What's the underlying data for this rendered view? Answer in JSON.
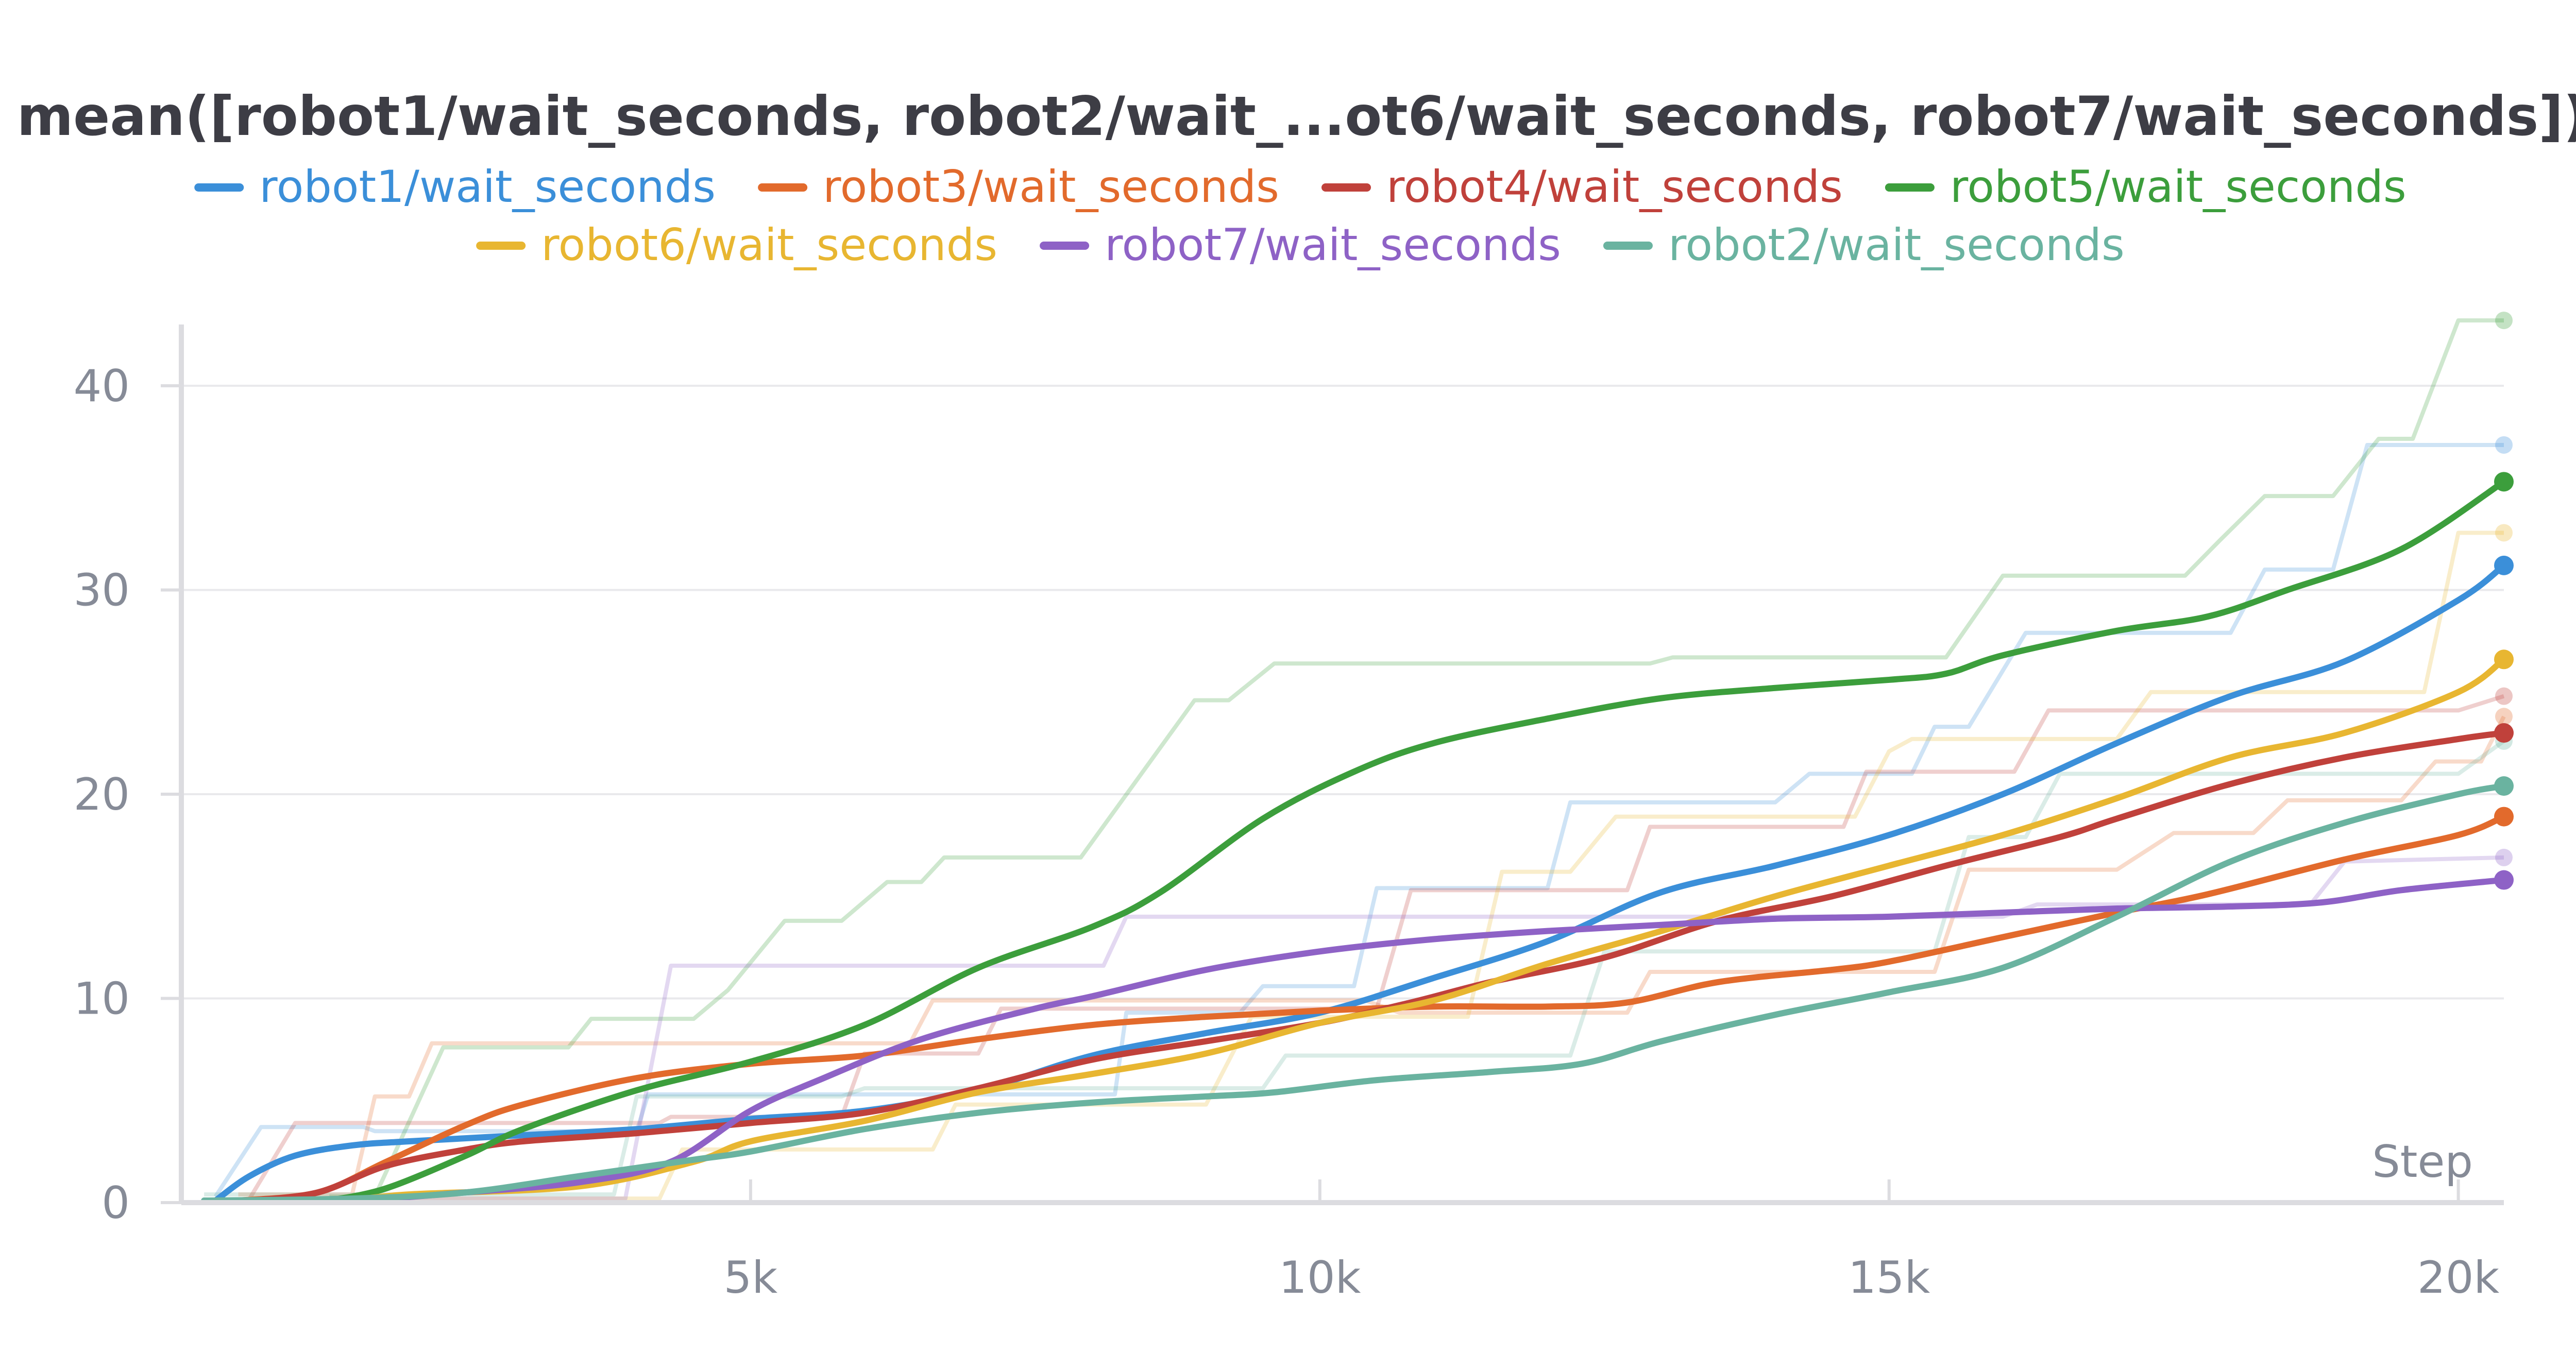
{
  "chart_data": {
    "type": "line",
    "title": "mean([robot1/wait_seconds, robot2/wait_...ot6/wait_seconds, robot7/wait_seconds])",
    "xlabel": "Step",
    "ylabel": "",
    "xlim": [
      0,
      20400
    ],
    "ylim": [
      0,
      43
    ],
    "x_ticks": [
      5000,
      10000,
      15000,
      20000
    ],
    "x_tick_labels": [
      "5k",
      "10k",
      "15k",
      "20k"
    ],
    "y_ticks": [
      0,
      10,
      20,
      30,
      40
    ],
    "y_tick_labels": [
      "0",
      "10",
      "20",
      "30",
      "40"
    ],
    "grid": true,
    "legend_position": "top-center",
    "series": [
      {
        "name": "robot1/wait_seconds",
        "color": "#3b8fd9",
        "smoothed": [
          [
            300,
            0.1
          ],
          [
            600,
            1.3
          ],
          [
            1000,
            2.3
          ],
          [
            1500,
            2.8
          ],
          [
            2000,
            3.0
          ],
          [
            3000,
            3.3
          ],
          [
            4000,
            3.6
          ],
          [
            5000,
            4.1
          ],
          [
            6000,
            4.5
          ],
          [
            7000,
            5.5
          ],
          [
            8000,
            7.2
          ],
          [
            9000,
            8.3
          ],
          [
            10000,
            9.3
          ],
          [
            11000,
            11.0
          ],
          [
            12000,
            12.8
          ],
          [
            13000,
            15.2
          ],
          [
            14000,
            16.5
          ],
          [
            15000,
            18.0
          ],
          [
            16000,
            20.0
          ],
          [
            17000,
            22.5
          ],
          [
            18000,
            24.8
          ],
          [
            19000,
            26.5
          ],
          [
            20000,
            29.5
          ],
          [
            20400,
            31.2
          ]
        ],
        "raw": [
          [
            300,
            0.3
          ],
          [
            700,
            3.7
          ],
          [
            1600,
            3.7
          ],
          [
            1700,
            3.5
          ],
          [
            4000,
            3.5
          ],
          [
            4100,
            5.3
          ],
          [
            8200,
            5.3
          ],
          [
            8300,
            9.3
          ],
          [
            9300,
            9.3
          ],
          [
            9500,
            10.6
          ],
          [
            10300,
            10.6
          ],
          [
            10500,
            15.4
          ],
          [
            11000,
            15.4
          ],
          [
            12000,
            15.4
          ],
          [
            12200,
            19.6
          ],
          [
            14000,
            19.6
          ],
          [
            14300,
            21.0
          ],
          [
            15200,
            21.0
          ],
          [
            15400,
            23.3
          ],
          [
            15700,
            23.3
          ],
          [
            16200,
            27.9
          ],
          [
            18000,
            27.9
          ],
          [
            18300,
            31.0
          ],
          [
            18900,
            31.0
          ],
          [
            19200,
            37.1
          ],
          [
            20400,
            37.1
          ]
        ]
      },
      {
        "name": "robot3/wait_seconds",
        "color": "#e26a2c",
        "smoothed": [
          [
            500,
            0.1
          ],
          [
            1200,
            0.5
          ],
          [
            1800,
            2.0
          ],
          [
            2500,
            3.8
          ],
          [
            3000,
            4.8
          ],
          [
            4000,
            6.1
          ],
          [
            5000,
            6.8
          ],
          [
            6000,
            7.2
          ],
          [
            7000,
            8.0
          ],
          [
            8000,
            8.7
          ],
          [
            9000,
            9.1
          ],
          [
            10000,
            9.4
          ],
          [
            11000,
            9.6
          ],
          [
            12000,
            9.6
          ],
          [
            12700,
            9.8
          ],
          [
            13500,
            10.8
          ],
          [
            14500,
            11.4
          ],
          [
            15000,
            11.8
          ],
          [
            16000,
            13.0
          ],
          [
            17000,
            14.2
          ],
          [
            17800,
            15.1
          ],
          [
            19000,
            16.8
          ],
          [
            20000,
            18.0
          ],
          [
            20400,
            18.9
          ]
        ],
        "raw": [
          [
            500,
            0.4
          ],
          [
            1500,
            0.4
          ],
          [
            1700,
            5.2
          ],
          [
            2000,
            5.2
          ],
          [
            2200,
            7.8
          ],
          [
            6400,
            7.8
          ],
          [
            6600,
            9.9
          ],
          [
            10400,
            9.9
          ],
          [
            10700,
            9.3
          ],
          [
            12700,
            9.3
          ],
          [
            12900,
            11.3
          ],
          [
            15400,
            11.3
          ],
          [
            15700,
            16.3
          ],
          [
            17000,
            16.3
          ],
          [
            17500,
            18.1
          ],
          [
            18200,
            18.1
          ],
          [
            18500,
            19.7
          ],
          [
            19500,
            19.7
          ],
          [
            19800,
            21.6
          ],
          [
            20200,
            21.6
          ],
          [
            20400,
            23.8
          ]
        ]
      },
      {
        "name": "robot4/wait_seconds",
        "color": "#c0413b",
        "smoothed": [
          [
            600,
            0.1
          ],
          [
            1200,
            0.5
          ],
          [
            1800,
            1.8
          ],
          [
            2500,
            2.6
          ],
          [
            3000,
            3.0
          ],
          [
            4000,
            3.4
          ],
          [
            5000,
            3.9
          ],
          [
            6000,
            4.4
          ],
          [
            7000,
            5.6
          ],
          [
            8000,
            7.0
          ],
          [
            9000,
            7.9
          ],
          [
            10000,
            8.8
          ],
          [
            10800,
            9.8
          ],
          [
            11500,
            10.8
          ],
          [
            12500,
            12.0
          ],
          [
            13500,
            13.8
          ],
          [
            14500,
            15.0
          ],
          [
            15500,
            16.5
          ],
          [
            16500,
            17.9
          ],
          [
            17000,
            18.8
          ],
          [
            18000,
            20.5
          ],
          [
            19000,
            21.8
          ],
          [
            20000,
            22.7
          ],
          [
            20400,
            23.0
          ]
        ],
        "raw": [
          [
            600,
            0.2
          ],
          [
            1000,
            3.9
          ],
          [
            4200,
            3.9
          ],
          [
            4300,
            4.2
          ],
          [
            5800,
            4.2
          ],
          [
            6000,
            7.3
          ],
          [
            7000,
            7.3
          ],
          [
            7200,
            9.5
          ],
          [
            10500,
            9.5
          ],
          [
            10800,
            15.3
          ],
          [
            12700,
            15.3
          ],
          [
            12900,
            18.4
          ],
          [
            14600,
            18.4
          ],
          [
            14800,
            21.1
          ],
          [
            16100,
            21.1
          ],
          [
            16400,
            24.1
          ],
          [
            20000,
            24.1
          ],
          [
            20400,
            24.8
          ]
        ]
      },
      {
        "name": "robot5/wait_seconds",
        "color": "#3c9e3c",
        "smoothed": [
          [
            1300,
            0.1
          ],
          [
            1800,
            0.7
          ],
          [
            2500,
            2.3
          ],
          [
            3000,
            3.6
          ],
          [
            4000,
            5.5
          ],
          [
            5000,
            6.9
          ],
          [
            6000,
            8.7
          ],
          [
            7000,
            11.5
          ],
          [
            8000,
            13.5
          ],
          [
            8600,
            15.2
          ],
          [
            9500,
            18.8
          ],
          [
            10300,
            21.1
          ],
          [
            11000,
            22.5
          ],
          [
            12000,
            23.7
          ],
          [
            13000,
            24.7
          ],
          [
            14000,
            25.2
          ],
          [
            15000,
            25.6
          ],
          [
            15500,
            25.9
          ],
          [
            16000,
            26.8
          ],
          [
            17000,
            28.0
          ],
          [
            17800,
            28.7
          ],
          [
            18500,
            30.0
          ],
          [
            19500,
            32.0
          ],
          [
            20400,
            35.3
          ]
        ],
        "raw": [
          [
            1300,
            0.3
          ],
          [
            1700,
            0.3
          ],
          [
            2300,
            7.6
          ],
          [
            3400,
            7.6
          ],
          [
            3600,
            9.0
          ],
          [
            4500,
            9.0
          ],
          [
            4800,
            10.4
          ],
          [
            5300,
            13.8
          ],
          [
            5800,
            13.8
          ],
          [
            6200,
            15.7
          ],
          [
            6500,
            15.7
          ],
          [
            6700,
            16.9
          ],
          [
            7900,
            16.9
          ],
          [
            8900,
            24.6
          ],
          [
            9200,
            24.6
          ],
          [
            9600,
            26.4
          ],
          [
            12900,
            26.4
          ],
          [
            13100,
            26.7
          ],
          [
            15500,
            26.7
          ],
          [
            16000,
            30.7
          ],
          [
            17600,
            30.7
          ],
          [
            17900,
            32.4
          ],
          [
            18300,
            34.6
          ],
          [
            18900,
            34.6
          ],
          [
            19300,
            37.4
          ],
          [
            19600,
            37.4
          ],
          [
            20000,
            43.2
          ],
          [
            20400,
            43.2
          ]
        ]
      },
      {
        "name": "robot6/wait_seconds",
        "color": "#e8b631",
        "smoothed": [
          [
            1500,
            0.1
          ],
          [
            2000,
            0.4
          ],
          [
            3500,
            0.8
          ],
          [
            4500,
            2.0
          ],
          [
            5000,
            3.0
          ],
          [
            6000,
            4.0
          ],
          [
            7000,
            5.4
          ],
          [
            8000,
            6.3
          ],
          [
            9000,
            7.3
          ],
          [
            10000,
            8.8
          ],
          [
            11000,
            9.9
          ],
          [
            12000,
            11.7
          ],
          [
            13000,
            13.3
          ],
          [
            14000,
            15.0
          ],
          [
            15000,
            16.5
          ],
          [
            16000,
            18.0
          ],
          [
            17000,
            19.8
          ],
          [
            18000,
            21.8
          ],
          [
            19000,
            23.0
          ],
          [
            20000,
            25.0
          ],
          [
            20400,
            26.6
          ]
        ],
        "raw": [
          [
            1500,
            0.2
          ],
          [
            4200,
            0.2
          ],
          [
            4400,
            2.6
          ],
          [
            6600,
            2.6
          ],
          [
            6800,
            4.8
          ],
          [
            9000,
            4.8
          ],
          [
            9400,
            9.1
          ],
          [
            11300,
            9.1
          ],
          [
            11600,
            16.2
          ],
          [
            12200,
            16.2
          ],
          [
            12600,
            18.9
          ],
          [
            14700,
            18.9
          ],
          [
            15000,
            22.1
          ],
          [
            15200,
            22.7
          ],
          [
            17000,
            22.7
          ],
          [
            17300,
            25.0
          ],
          [
            19700,
            25.0
          ],
          [
            20000,
            32.8
          ],
          [
            20400,
            32.8
          ]
        ]
      },
      {
        "name": "robot7/wait_seconds",
        "color": "#8e62c6",
        "smoothed": [
          [
            1600,
            0.1
          ],
          [
            2500,
            0.5
          ],
          [
            3500,
            1.0
          ],
          [
            4300,
            2.0
          ],
          [
            5000,
            4.5
          ],
          [
            5600,
            6.0
          ],
          [
            6500,
            8.0
          ],
          [
            7500,
            9.5
          ],
          [
            8000,
            10.1
          ],
          [
            9000,
            11.4
          ],
          [
            10000,
            12.3
          ],
          [
            11000,
            12.9
          ],
          [
            12000,
            13.3
          ],
          [
            13000,
            13.6
          ],
          [
            14000,
            13.9
          ],
          [
            15000,
            14.0
          ],
          [
            16000,
            14.2
          ],
          [
            17000,
            14.4
          ],
          [
            18000,
            14.5
          ],
          [
            18800,
            14.7
          ],
          [
            19500,
            15.3
          ],
          [
            20400,
            15.8
          ]
        ],
        "raw": [
          [
            1600,
            0.2
          ],
          [
            3900,
            0.2
          ],
          [
            4300,
            11.6
          ],
          [
            8100,
            11.6
          ],
          [
            8300,
            14.0
          ],
          [
            16000,
            14.0
          ],
          [
            16300,
            14.6
          ],
          [
            18700,
            14.6
          ],
          [
            19000,
            16.7
          ],
          [
            20400,
            16.9
          ]
        ]
      },
      {
        "name": "robot2/wait_seconds",
        "color": "#6ab3a0",
        "smoothed": [
          [
            200,
            0.1
          ],
          [
            1500,
            0.2
          ],
          [
            2500,
            0.5
          ],
          [
            3500,
            1.3
          ],
          [
            4500,
            2.1
          ],
          [
            5000,
            2.5
          ],
          [
            6000,
            3.6
          ],
          [
            7000,
            4.4
          ],
          [
            8000,
            4.9
          ],
          [
            9000,
            5.2
          ],
          [
            9600,
            5.4
          ],
          [
            10500,
            6.0
          ],
          [
            11500,
            6.4
          ],
          [
            12300,
            6.8
          ],
          [
            13000,
            7.9
          ],
          [
            14000,
            9.2
          ],
          [
            15000,
            10.3
          ],
          [
            16000,
            11.5
          ],
          [
            17000,
            14.0
          ],
          [
            18000,
            16.7
          ],
          [
            19000,
            18.6
          ],
          [
            20000,
            20.0
          ],
          [
            20400,
            20.4
          ]
        ],
        "raw": [
          [
            200,
            0.4
          ],
          [
            3800,
            0.4
          ],
          [
            4000,
            5.2
          ],
          [
            5800,
            5.2
          ],
          [
            6000,
            5.6
          ],
          [
            9500,
            5.6
          ],
          [
            9700,
            7.2
          ],
          [
            12200,
            7.2
          ],
          [
            12500,
            12.3
          ],
          [
            15400,
            12.3
          ],
          [
            15700,
            17.9
          ],
          [
            16200,
            17.9
          ],
          [
            16500,
            21.0
          ],
          [
            20000,
            21.0
          ],
          [
            20400,
            22.6
          ]
        ]
      }
    ]
  }
}
